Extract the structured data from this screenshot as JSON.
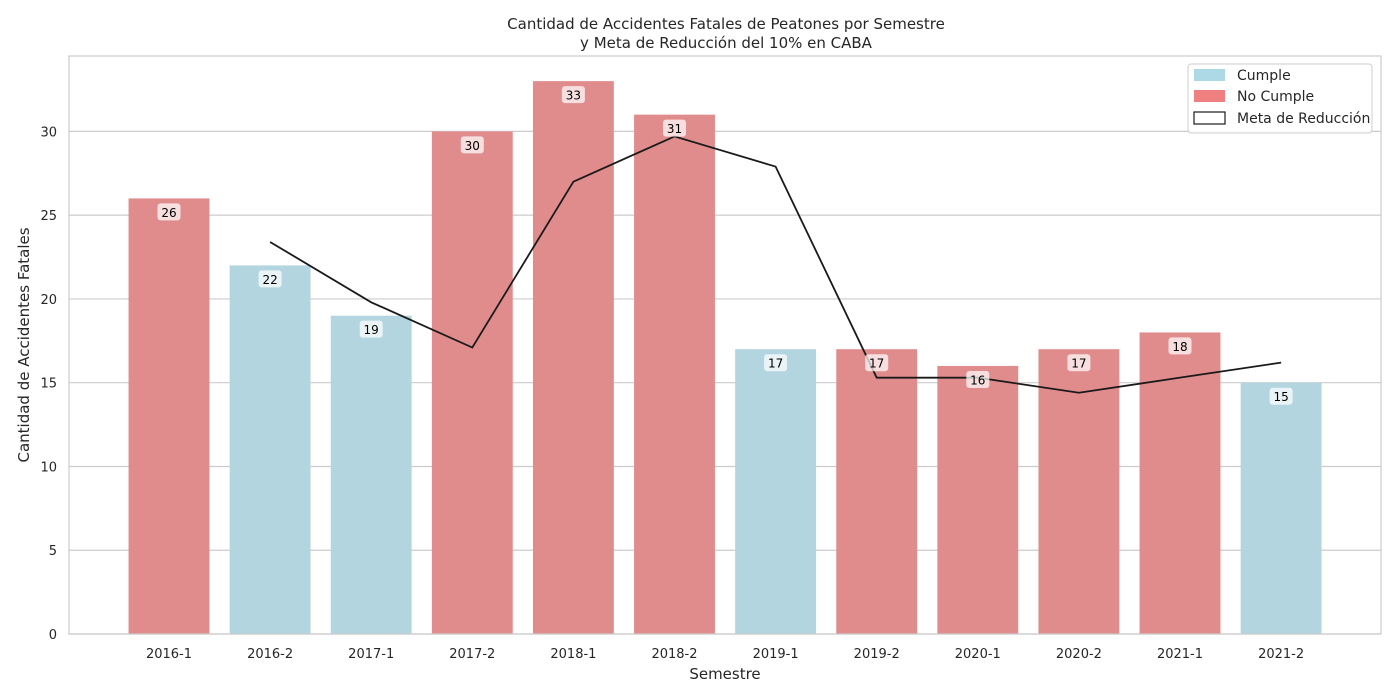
{
  "chart_data": {
    "type": "bar",
    "title": "Cantidad de Accidentes Fatales de Peatones por Semestre",
    "subtitle": "y Meta de Reducción del 10% en CABA",
    "xlabel": "Semestre",
    "ylabel": "Cantidad de Accidentes Fatales",
    "ylim": [
      0,
      34.5
    ],
    "yticks": [
      0,
      5,
      10,
      15,
      20,
      25,
      30
    ],
    "grid": "horizontal",
    "legend_position": "top-right",
    "categories": [
      "2016-1",
      "2016-2",
      "2017-1",
      "2017-2",
      "2018-1",
      "2018-2",
      "2019-1",
      "2019-2",
      "2020-1",
      "2020-2",
      "2021-1",
      "2021-2"
    ],
    "values": [
      26,
      22,
      19,
      30,
      33,
      31,
      17,
      17,
      16,
      17,
      18,
      15
    ],
    "status": [
      "No Cumple",
      "Cumple",
      "Cumple",
      "No Cumple",
      "No Cumple",
      "No Cumple",
      "Cumple",
      "No Cumple",
      "No Cumple",
      "No Cumple",
      "No Cumple",
      "Cumple"
    ],
    "meta_reduccion": [
      null,
      23.4,
      19.8,
      17.1,
      27.0,
      29.7,
      27.9,
      15.3,
      15.3,
      14.4,
      15.3,
      16.2
    ],
    "colors": {
      "Cumple": "#add8e6",
      "No Cumple": "#f08080",
      "Meta de Reducción": "#000000"
    },
    "legend": [
      {
        "label": "Cumple",
        "kind": "Cumple"
      },
      {
        "label": "No Cumple",
        "kind": "No Cumple"
      },
      {
        "label": "Meta de Reducción",
        "kind": "Meta de Reducción"
      }
    ]
  }
}
